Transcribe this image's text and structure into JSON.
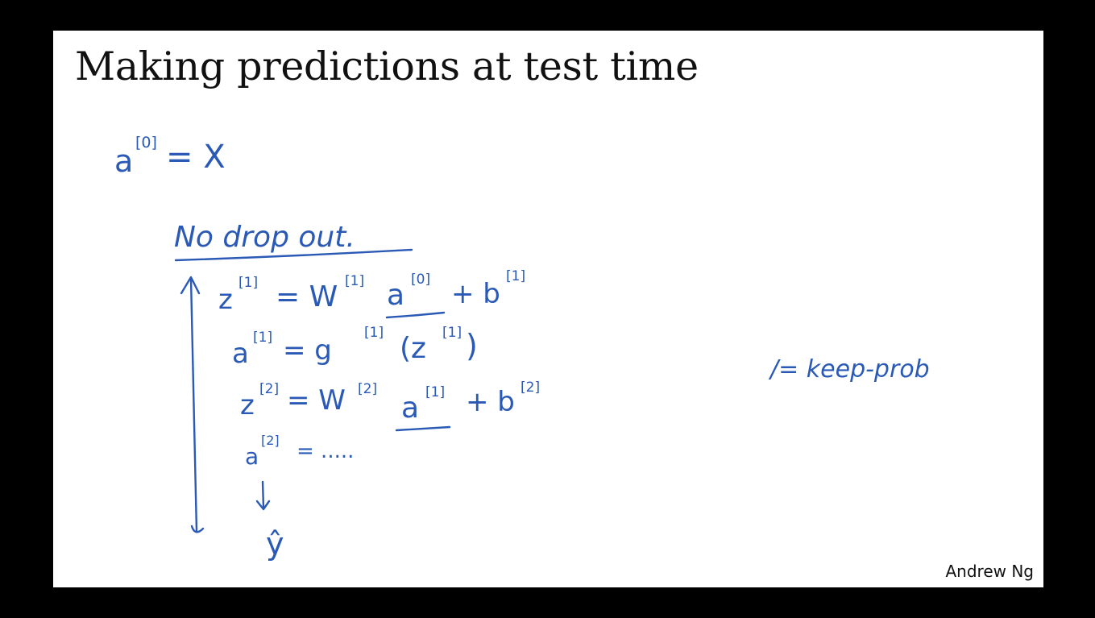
{
  "slide": {
    "title": "Making predictions at test time",
    "attribution": "Andrew Ng"
  },
  "handwriting": {
    "a0_equals_x": {
      "base": "a",
      "sup": "[0]",
      "rhs": "= X"
    },
    "no_dropout": "No  drop  out.",
    "equations": [
      {
        "lhs": "z",
        "lhs_sup": "[1]",
        "rhs": "= W",
        "w_sup": "[1]",
        "mid": "a",
        "mid_sup": "[0]",
        "tail": "+ b",
        "tail_sup": "[1]"
      },
      {
        "lhs": "a",
        "lhs_sup": "[1]",
        "rhs": "= g",
        "g_sup": "[1]",
        "arg": "(z",
        "arg_sup": "[1]",
        "close": ")"
      },
      {
        "lhs": "z",
        "lhs_sup": "[2]",
        "rhs": "= W",
        "w_sup": "[2]",
        "mid": "a",
        "mid_sup": "[1]",
        "tail": "+ b",
        "tail_sup": "[2]"
      },
      {
        "lhs": "a",
        "lhs_sup": "[2]",
        "rhs": "= ....."
      }
    ],
    "y_hat": "ŷ",
    "side_note": "/= keep-prob"
  }
}
